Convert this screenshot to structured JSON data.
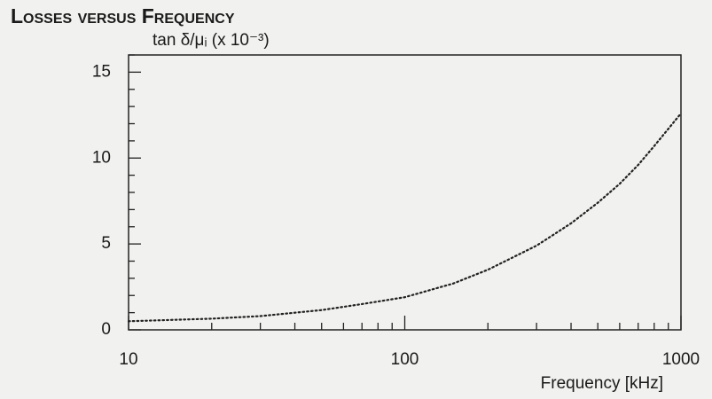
{
  "chart_data": {
    "type": "line",
    "title": "Losses versus Frequency",
    "y_label": "tan δ/μᵢ (x 10⁻³)",
    "x_label": "Frequency [kHz]",
    "x": [
      10,
      20,
      30,
      50,
      70,
      100,
      150,
      200,
      300,
      400,
      500,
      600,
      700,
      800,
      900,
      1000
    ],
    "series": [
      {
        "name": "tan δ/μi",
        "color": "#222222",
        "values": [
          0.5,
          0.65,
          0.8,
          1.15,
          1.5,
          1.9,
          2.7,
          3.5,
          4.9,
          6.2,
          7.4,
          8.5,
          9.6,
          10.7,
          11.7,
          12.6
        ]
      }
    ],
    "xscale": "log",
    "xlim": [
      10,
      1000
    ],
    "xticks": [
      10,
      100,
      1000
    ],
    "xticks_minor": [
      20,
      30,
      40,
      50,
      60,
      70,
      80,
      90,
      200,
      300,
      400,
      500,
      600,
      700,
      800,
      900
    ],
    "ylim": [
      0,
      16
    ],
    "yticks": [
      0,
      5,
      10,
      15
    ],
    "yticks_minor": [
      1,
      2,
      3,
      4,
      6,
      7,
      8,
      9,
      11,
      12,
      13,
      14,
      16
    ],
    "grid": false
  }
}
